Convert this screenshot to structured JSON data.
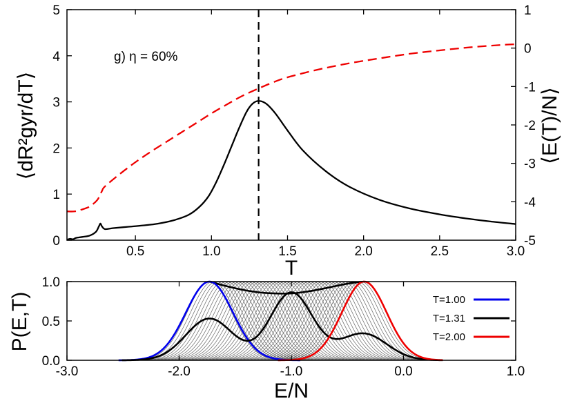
{
  "chart_data": [
    {
      "type": "line",
      "panel": "top",
      "xlabel": "T",
      "ylabel_left": "⟨dR²gyr/dT⟩",
      "ylabel_right": "⟨E(T)/N⟩",
      "annotation": "g) η = 60%",
      "xlim": [
        0.05,
        3.0
      ],
      "ylim_left": [
        0,
        5
      ],
      "ylim_right": [
        -5,
        1
      ],
      "x_ticks": [
        "0.5",
        "1.0",
        "1.5",
        "2.0",
        "2.5",
        "3.0"
      ],
      "y_ticks_left": [
        "0",
        "1",
        "2",
        "3",
        "4",
        "5"
      ],
      "y_ticks_right": [
        "-5",
        "-4",
        "-3",
        "-2",
        "-1",
        "0",
        "1"
      ],
      "vline_x": 1.31,
      "series": [
        {
          "role": "dRgyr/dT",
          "axis": "left",
          "color": "#000000",
          "style": "solid",
          "x": [
            0.05,
            0.07,
            0.09,
            0.11,
            0.15,
            0.2,
            0.24,
            0.26,
            0.27,
            0.28,
            0.3,
            0.35,
            0.45,
            0.55,
            0.65,
            0.75,
            0.85,
            0.92,
            0.98,
            1.03,
            1.08,
            1.13,
            1.18,
            1.23,
            1.27,
            1.31,
            1.36,
            1.42,
            1.5,
            1.6,
            1.75,
            1.9,
            2.1,
            2.3,
            2.5,
            2.7,
            2.85,
            3.0
          ],
          "y": [
            0.01,
            0.03,
            0.02,
            0.05,
            0.07,
            0.1,
            0.18,
            0.3,
            0.36,
            0.3,
            0.24,
            0.26,
            0.29,
            0.32,
            0.36,
            0.43,
            0.55,
            0.72,
            0.95,
            1.25,
            1.62,
            2.02,
            2.42,
            2.78,
            2.96,
            3.02,
            2.96,
            2.75,
            2.38,
            1.95,
            1.5,
            1.17,
            0.88,
            0.69,
            0.56,
            0.46,
            0.4,
            0.35
          ]
        },
        {
          "role": "E/N",
          "axis": "right",
          "color": "#ee0000",
          "style": "dashed",
          "x": [
            0.05,
            0.1,
            0.15,
            0.2,
            0.25,
            0.28,
            0.3,
            0.4,
            0.5,
            0.6,
            0.7,
            0.8,
            0.9,
            1.0,
            1.1,
            1.2,
            1.31,
            1.4,
            1.5,
            1.7,
            1.9,
            2.1,
            2.3,
            2.5,
            2.7,
            2.9,
            3.0
          ],
          "y": [
            -4.25,
            -4.25,
            -4.2,
            -4.12,
            -3.95,
            -3.72,
            -3.6,
            -3.27,
            -2.97,
            -2.7,
            -2.45,
            -2.2,
            -1.95,
            -1.7,
            -1.47,
            -1.25,
            -1.05,
            -0.9,
            -0.76,
            -0.56,
            -0.4,
            -0.27,
            -0.15,
            -0.06,
            0.02,
            0.08,
            0.1
          ]
        }
      ]
    },
    {
      "type": "line",
      "panel": "bottom",
      "xlabel": "E/N",
      "ylabel": "P(E,T)",
      "xlim": [
        -3.0,
        1.0
      ],
      "ylim": [
        0,
        1.0
      ],
      "x_ticks": [
        "-3.0",
        "-2.0",
        "-1.0",
        "0.0",
        "1.0"
      ],
      "y_ticks": [
        "0.0",
        "0.5",
        "1.0"
      ],
      "series": [
        {
          "name": "T=1.00",
          "color": "#0000ee",
          "peaks": [
            {
              "mu": -1.73,
              "sigma": 0.21,
              "amp": 1.0
            }
          ]
        },
        {
          "name": "T=1.31",
          "color": "#000000",
          "peaks": [
            {
              "mu": -1.73,
              "sigma": 0.21,
              "amp": 0.53
            },
            {
              "mu": -1.0,
              "sigma": 0.19,
              "amp": 0.86
            },
            {
              "mu": -0.36,
              "sigma": 0.21,
              "amp": 0.34
            }
          ]
        },
        {
          "name": "T=2.00",
          "color": "#ee0000",
          "peaks": [
            {
              "mu": -0.35,
              "sigma": 0.2,
              "amp": 1.0
            }
          ]
        }
      ],
      "family": {
        "count": 46,
        "mu_from": -1.73,
        "mu_to": -0.35,
        "sigma": 0.2,
        "color": "#666666"
      },
      "envelope": {
        "color": "#000000",
        "x": [
          -1.73,
          -1.6,
          -1.45,
          -1.3,
          -1.15,
          -1.0,
          -0.85,
          -0.7,
          -0.55,
          -0.45,
          -0.35
        ],
        "y": [
          1.0,
          0.95,
          0.9,
          0.865,
          0.85,
          0.85,
          0.875,
          0.915,
          0.96,
          0.985,
          1.0
        ]
      }
    }
  ]
}
